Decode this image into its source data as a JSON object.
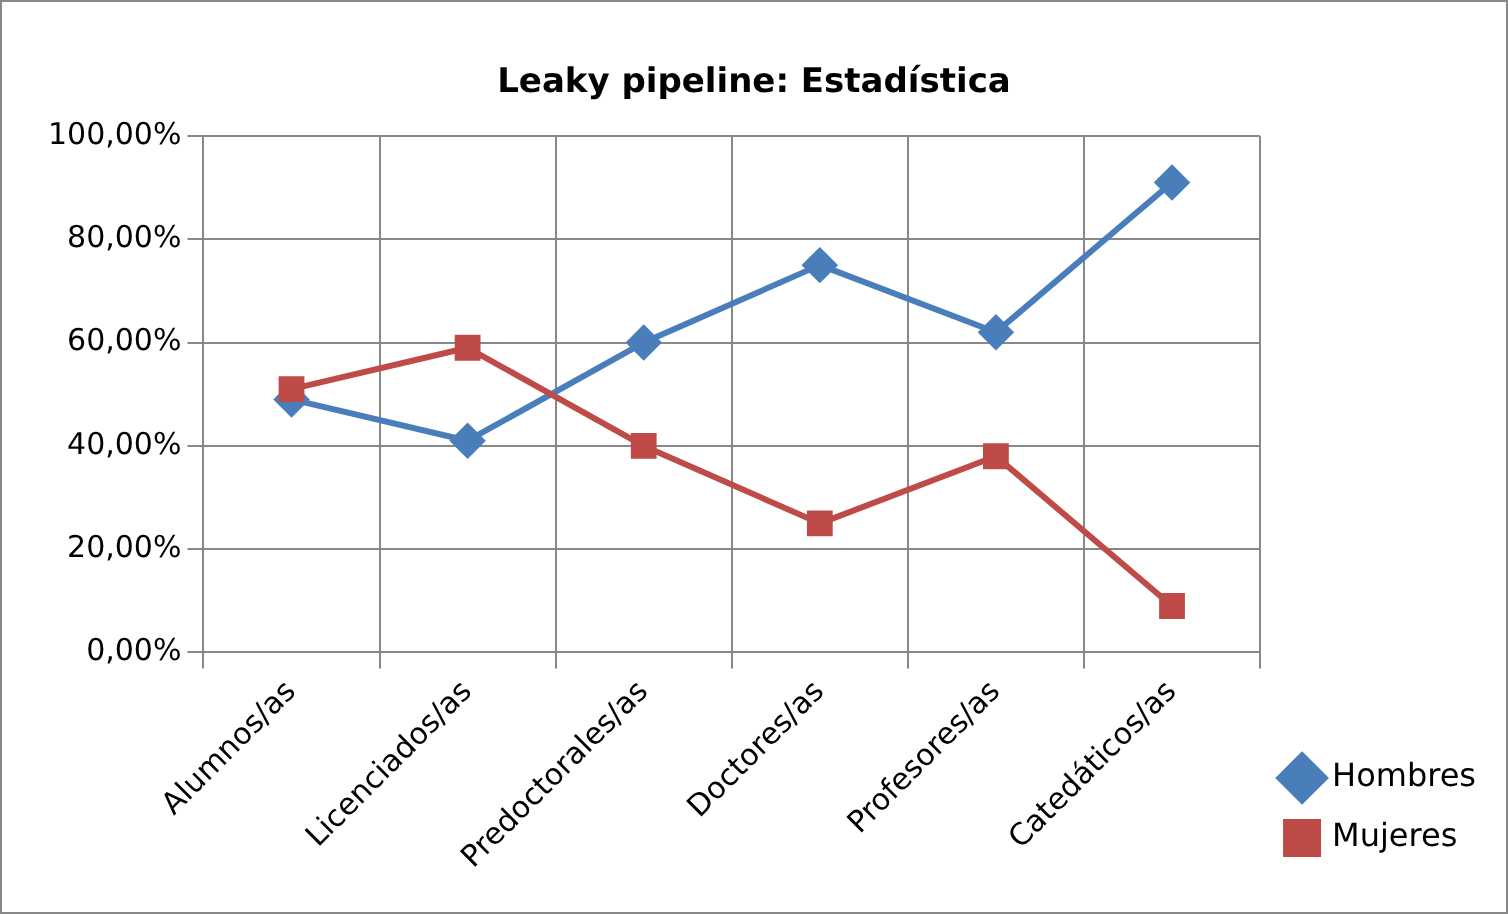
{
  "chart_data": {
    "type": "line",
    "title": "Leaky pipeline: Estadística",
    "categories": [
      "Alumnos/as",
      "Licenciados/as",
      "Predoctorales/as",
      "Doctores/as",
      "Profesores/as",
      "Catedáticos/as"
    ],
    "series": [
      {
        "name": "Hombres",
        "color": "#4a7ebb",
        "marker": "diamond",
        "values": [
          49,
          41,
          60,
          75,
          62,
          91
        ]
      },
      {
        "name": "Mujeres",
        "color": "#be4b48",
        "marker": "square",
        "values": [
          51,
          59,
          40,
          25,
          38,
          9
        ]
      }
    ],
    "ylim": [
      0,
      100
    ],
    "yticks": [
      {
        "value": 0,
        "label": "0,00%"
      },
      {
        "value": 20,
        "label": "20,00%"
      },
      {
        "value": 40,
        "label": "40,00%"
      },
      {
        "value": 60,
        "label": "60,00%"
      },
      {
        "value": 80,
        "label": "80,00%"
      },
      {
        "value": 100,
        "label": "100,00%"
      }
    ],
    "grid": true,
    "legend": "right",
    "line_style": "solid"
  }
}
